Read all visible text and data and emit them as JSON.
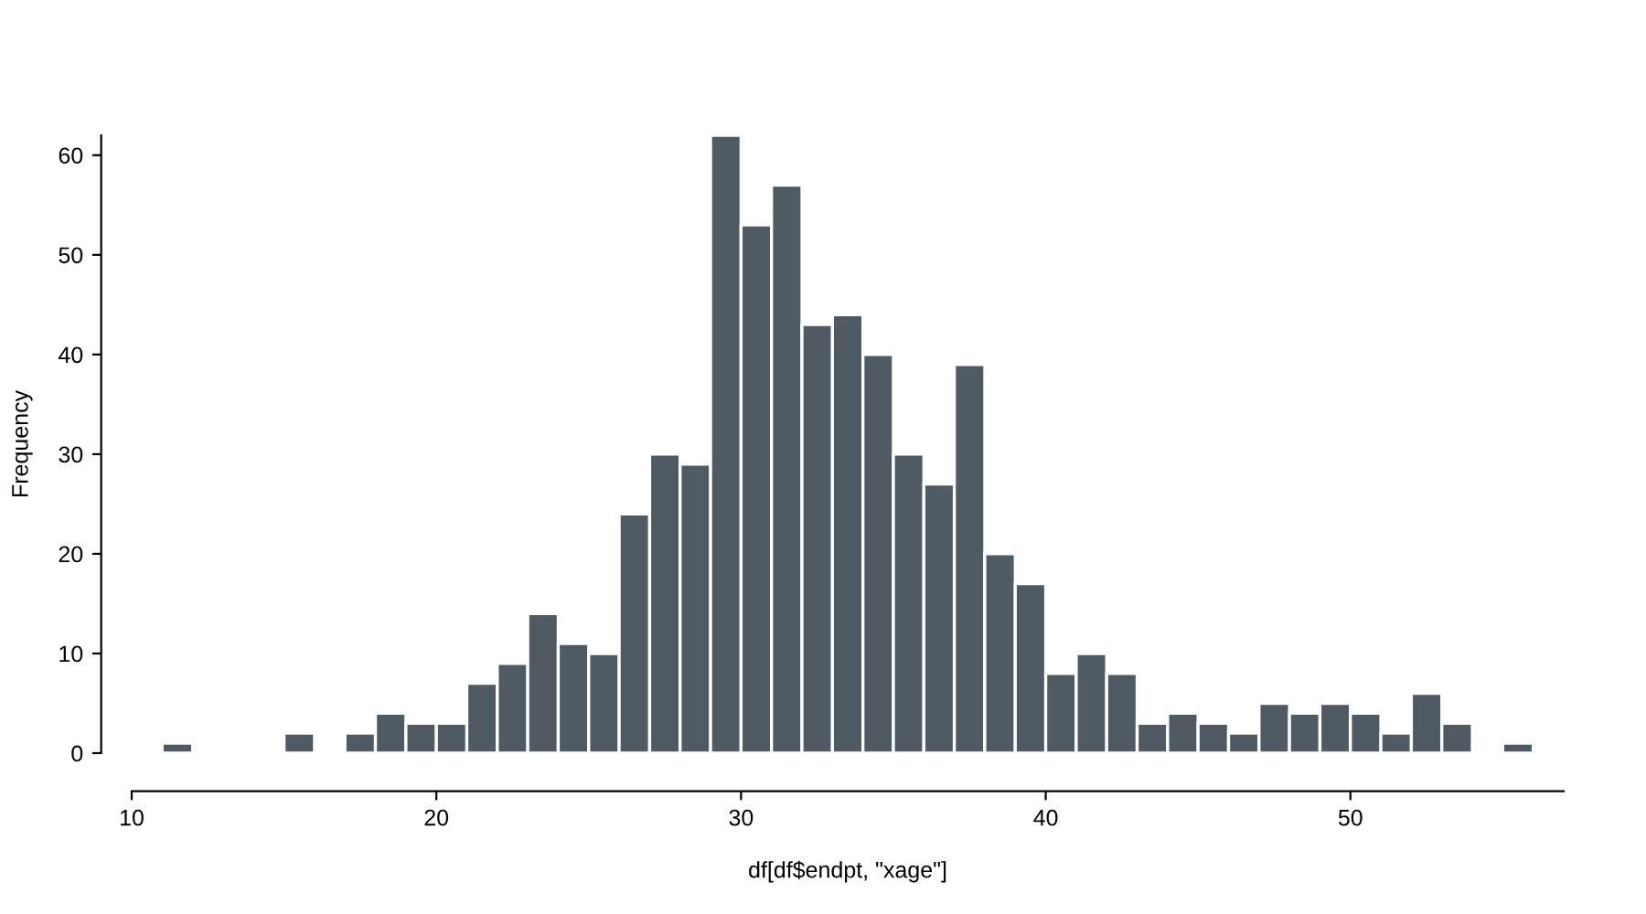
{
  "chart_data": {
    "type": "histogram",
    "xlabel": "df[df$endpt, \"xage\"]",
    "ylabel": "Frequency",
    "color": "#4f5a63",
    "bins": [
      11,
      12,
      13,
      14,
      15,
      16,
      17,
      18,
      19,
      20,
      21,
      22,
      23,
      24,
      25,
      26,
      27,
      28,
      29,
      30,
      31,
      32,
      33,
      34,
      35,
      36,
      37,
      38,
      39,
      40,
      41,
      42,
      43,
      44,
      45,
      46,
      47,
      48,
      49,
      50,
      51,
      52,
      53,
      54,
      55,
      56
    ],
    "values": [
      1,
      0,
      0,
      0,
      2,
      0,
      2,
      4,
      3,
      3,
      7,
      9,
      14,
      11,
      10,
      24,
      30,
      29,
      62,
      53,
      57,
      43,
      44,
      40,
      30,
      27,
      39,
      20,
      17,
      8,
      10,
      8,
      3,
      4,
      3,
      2,
      5,
      4,
      5,
      4,
      2,
      6,
      3,
      0,
      1
    ],
    "xlim": [
      10,
      57
    ],
    "ylim": [
      0,
      62
    ],
    "xticks": [
      10,
      20,
      30,
      40,
      50
    ],
    "yticks": [
      0,
      10,
      20,
      30,
      40,
      50,
      60
    ],
    "grid": false
  }
}
